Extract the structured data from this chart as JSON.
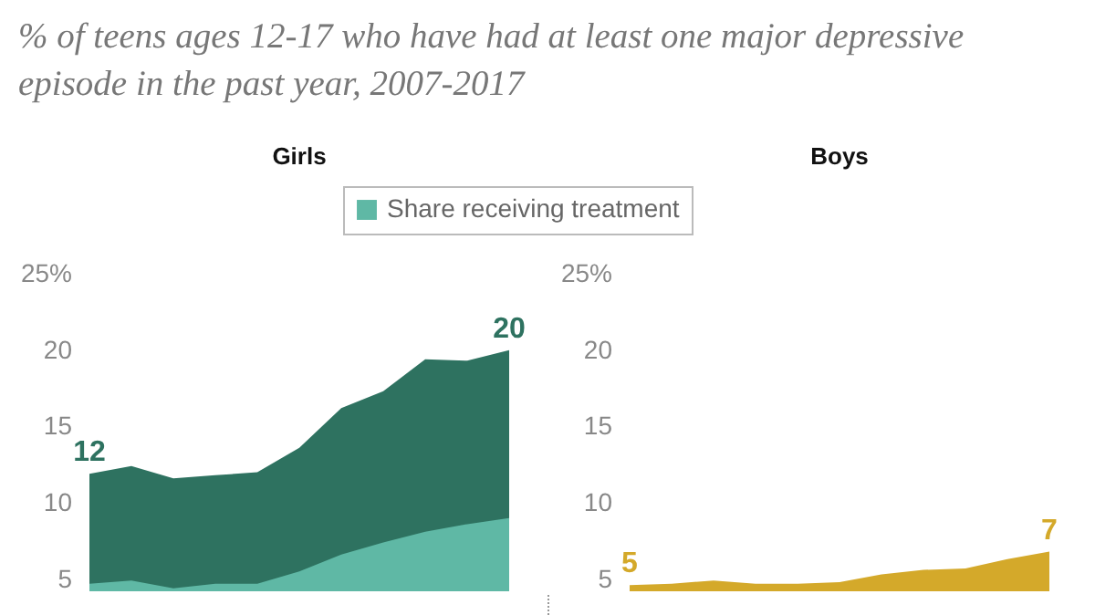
{
  "chart_data": [
    {
      "type": "area",
      "title": "% of teens ages 12-17 who have had at least one major depressive episode in the past year, 2007-2017",
      "subtitle": "Girls",
      "categories": [
        null,
        null,
        null,
        null,
        null,
        null,
        null,
        null,
        null,
        null,
        null
      ],
      "ylim": [
        4.2,
        25
      ],
      "yticks": [
        5,
        10,
        15,
        20,
        {
          "value": 25,
          "label": "25%"
        }
      ],
      "tick_labels": "y",
      "legend": "top",
      "series": [
        {
          "color": "#2e7260",
          "values": [
            11.9,
            12.4,
            11.6,
            11.8,
            12.0,
            13.6,
            16.2,
            17.3,
            19.4,
            19.3,
            20.0
          ],
          "value_labels": [
            "12",
            null,
            null,
            null,
            null,
            null,
            null,
            null,
            null,
            null,
            "20"
          ]
        },
        {
          "name": "Share receiving treatment",
          "color": "#5fb8a5",
          "values": [
            4.7,
            4.9,
            4.4,
            4.7,
            4.7,
            5.5,
            6.6,
            7.4,
            8.1,
            8.6,
            9.0
          ]
        }
      ]
    },
    {
      "type": "area",
      "subtitle": "Boys",
      "categories": [
        null,
        null,
        null,
        null,
        null,
        null,
        null,
        null,
        null,
        null,
        null
      ],
      "ylim": [
        4.2,
        25
      ],
      "yticks": [
        5,
        10,
        15,
        20,
        {
          "value": 25,
          "label": "25%"
        }
      ],
      "tick_labels": "y",
      "series": [
        {
          "color": "#d4a92a",
          "values": [
            4.6,
            4.7,
            4.9,
            4.7,
            4.7,
            4.8,
            5.3,
            5.6,
            5.7,
            6.3,
            6.8
          ],
          "value_labels": [
            "5",
            null,
            null,
            null,
            null,
            null,
            null,
            null,
            null,
            null,
            "7"
          ]
        }
      ]
    }
  ]
}
